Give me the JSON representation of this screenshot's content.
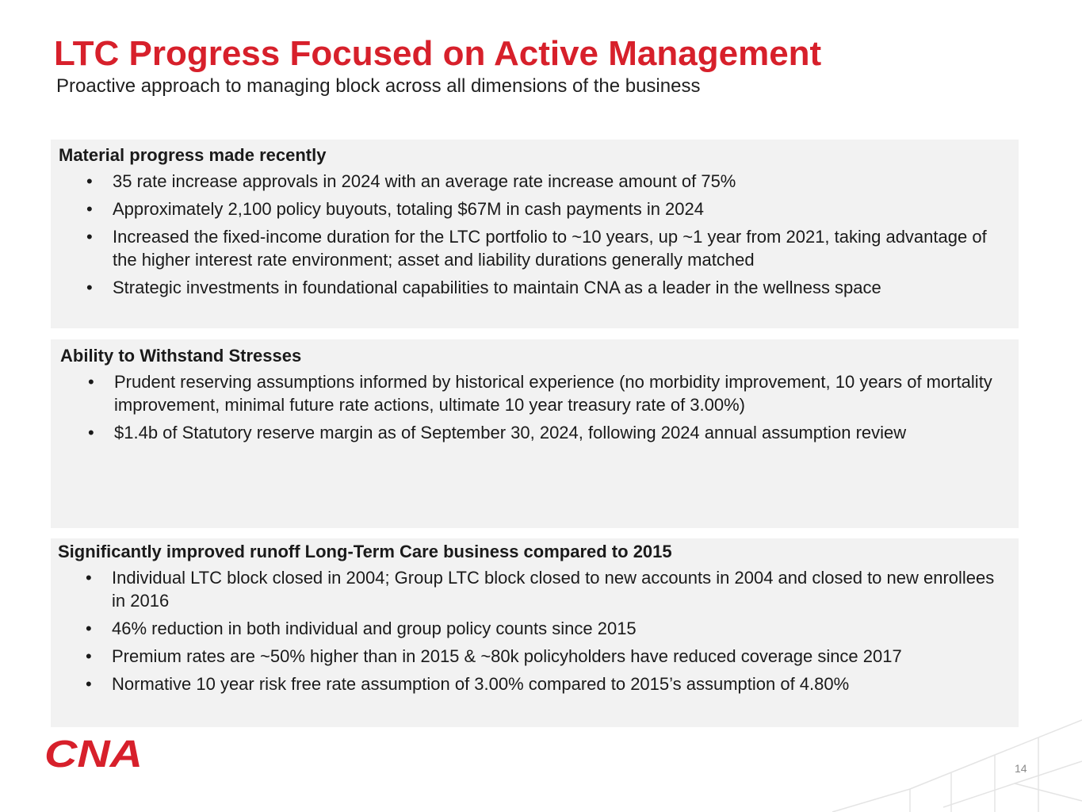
{
  "slide": {
    "title": "LTC Progress Focused on Active Management",
    "subtitle": "Proactive approach to managing block across all dimensions of the business",
    "page_number": "14",
    "logo_text": "CNA",
    "accent_color": "#d7202b",
    "panel_color": "#f2f2f2"
  },
  "panels": [
    {
      "heading": "Material progress made recently",
      "bullets": [
        "35 rate increase approvals in 2024 with an average rate increase amount of 75%",
        "Approximately 2,100 policy buyouts, totaling $67M in cash payments in 2024",
        "Increased the fixed-income duration for the LTC portfolio to ~10 years, up ~1 year from 2021, taking advantage of the higher interest rate environment; asset and liability durations generally matched",
        "Strategic investments in foundational capabilities to maintain CNA as a leader in the wellness space"
      ]
    },
    {
      "heading": "Ability to Withstand Stresses",
      "bullets": [
        "Prudent reserving assumptions informed by historical experience (no morbidity improvement, 10 years of mortality improvement, minimal future rate actions, ultimate 10 year treasury rate of 3.00%)",
        "$1.4b of Statutory reserve margin as of September 30, 2024, following 2024 annual assumption review"
      ]
    },
    {
      "heading": "Significantly improved runoff Long-Term Care business compared to 2015",
      "bullets": [
        "Individual LTC block closed in 2004; Group LTC block closed to new accounts in 2004 and closed to new enrollees in 2016",
        "46% reduction in both individual and group policy counts since 2015",
        "Premium rates are ~50% higher than in 2015 & ~80k policyholders have reduced coverage since 2017",
        "Normative 10 year risk free rate assumption of 3.00% compared to 2015’s assumption of 4.80%"
      ]
    }
  ]
}
